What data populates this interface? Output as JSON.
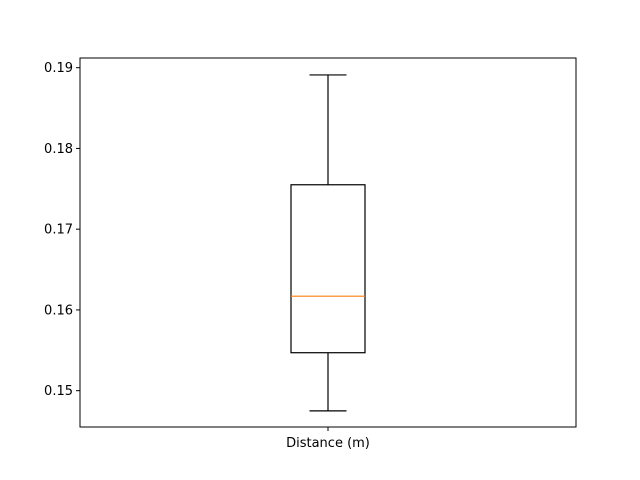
{
  "chart_data": {
    "type": "box",
    "categories": [
      "Distance (m)"
    ],
    "boxes": [
      {
        "label": "Distance (m)",
        "whisker_low": 0.1475,
        "q1": 0.1547,
        "median": 0.1617,
        "q3": 0.1755,
        "whisker_high": 0.1891
      }
    ],
    "yticks": [
      0.15,
      0.16,
      0.17,
      0.18,
      0.19
    ],
    "ytick_labels": [
      "0.15",
      "0.16",
      "0.17",
      "0.18",
      "0.19"
    ],
    "ylim": [
      0.1455,
      0.1912
    ],
    "grid": false,
    "colors": {
      "box": "#000000",
      "median": "#ff7f0e",
      "axes": "#000000"
    }
  }
}
